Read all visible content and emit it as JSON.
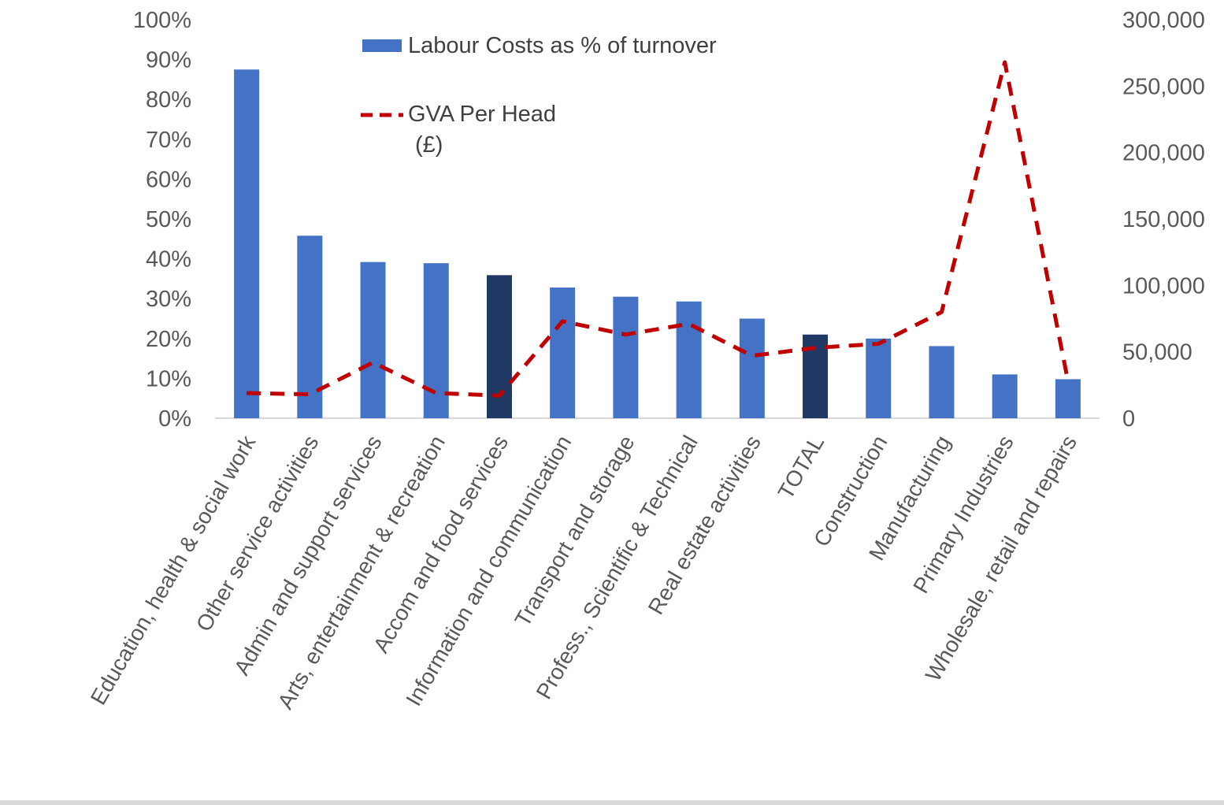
{
  "chart_data": {
    "type": "bar",
    "categories": [
      "Education, health & social work",
      "Other service activities",
      "Admin and support services",
      "Arts, entertainment & recreation",
      "Accom and food services",
      "Information and communication",
      "Transport and storage",
      "Profess., Scientific & Technical",
      "Real estate activities",
      "TOTAL",
      "Construction",
      "Manufacturing",
      "Primary Industries",
      "Wholesale, retail and repairs"
    ],
    "series": [
      {
        "name": "Labour Costs as % of turnover",
        "type": "bar",
        "axis": "left",
        "values": [
          87.5,
          45.8,
          39.2,
          38.9,
          35.9,
          32.8,
          30.5,
          29.3,
          25.0,
          21.0,
          20.0,
          18.1,
          11.0,
          9.8
        ],
        "color": "#4472c4",
        "highlight_color": "#203864",
        "highlight_categories": [
          "Accom and food services",
          "TOTAL"
        ]
      },
      {
        "name": "GVA Per Head",
        "name_line2": "(£)",
        "type": "line",
        "style": "dashed",
        "axis": "right",
        "values": [
          19000,
          18000,
          42000,
          19000,
          17000,
          73000,
          63000,
          71000,
          47000,
          53000,
          56000,
          80000,
          268000,
          28000
        ],
        "color": "#c00000"
      }
    ],
    "left_axis": {
      "min": 0,
      "max": 100,
      "step": 10,
      "ticks": [
        "0%",
        "10%",
        "20%",
        "30%",
        "40%",
        "50%",
        "60%",
        "70%",
        "80%",
        "90%",
        "100%"
      ]
    },
    "right_axis": {
      "min": 0,
      "max": 300000,
      "step": 50000,
      "ticks": [
        "0",
        "50,000",
        "100,000",
        "150,000",
        "200,000",
        "250,000",
        "300,000"
      ]
    },
    "legend_position": "top-center",
    "grid": false
  }
}
